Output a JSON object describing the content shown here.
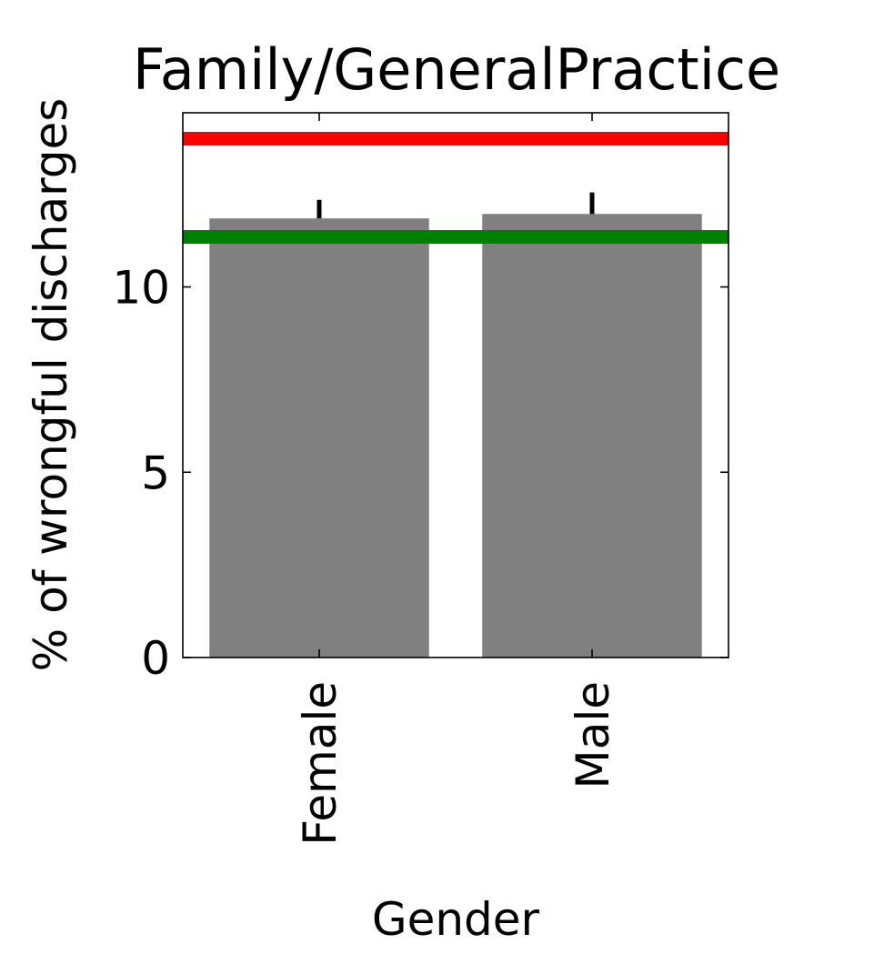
{
  "chart_data": {
    "type": "bar",
    "title": "Family/GeneralPractice",
    "xlabel": "Gender",
    "ylabel": "% of wrongful discharges",
    "categories": [
      "Female",
      "Male"
    ],
    "values": [
      11.85,
      11.97
    ],
    "error_upper": [
      12.35,
      12.55
    ],
    "ylim": [
      0,
      14.7
    ],
    "yticks": [
      0,
      5,
      10
    ],
    "reference_lines": [
      {
        "value": 14.0,
        "color": "#ff0000"
      },
      {
        "value": 11.35,
        "color": "#008000"
      }
    ],
    "bar_color": "#808080",
    "grid": false
  }
}
